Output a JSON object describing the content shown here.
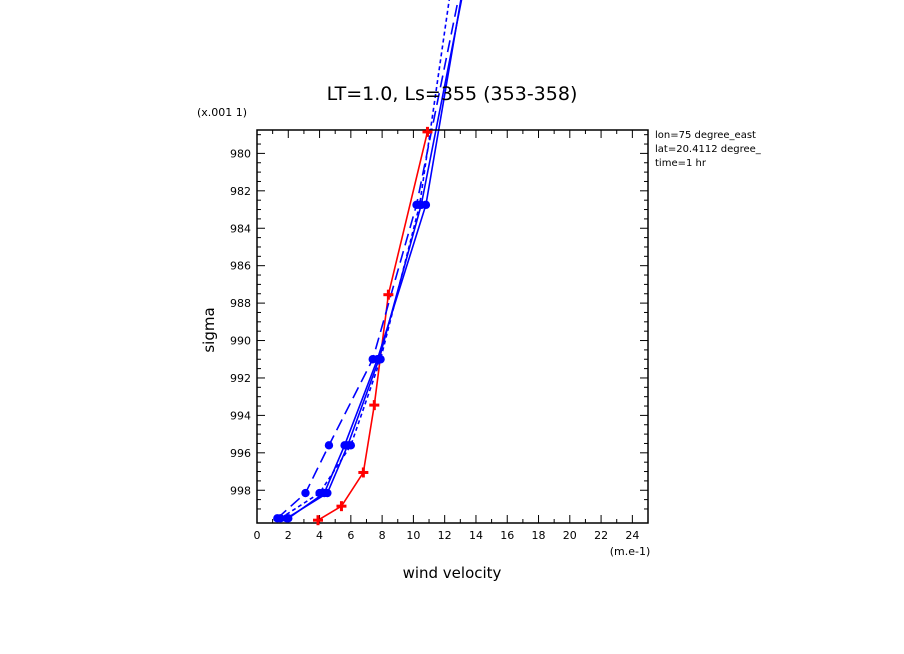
{
  "chart_data": {
    "type": "line",
    "title": "LT=1.0, Ls=355 (353-358)",
    "xlabel": "wind velocity",
    "ylabel": "sigma",
    "x_unit_label": "(m.e-1)",
    "y_scale_label": "(x.001 1)",
    "xlim": [
      0,
      25
    ],
    "ylim": [
      999.75,
      978.75
    ],
    "y_inverted": true,
    "x_ticks": [
      0,
      2,
      4,
      6,
      8,
      10,
      12,
      14,
      16,
      18,
      20,
      22,
      24
    ],
    "y_ticks": [
      980,
      982,
      984,
      986,
      988,
      990,
      992,
      994,
      996,
      998
    ],
    "grid": false,
    "info_lines": [
      "lon=75 degree_east",
      "lat=20.4112 degree_",
      "time=1 hr"
    ],
    "colors": {
      "red": "#ff0000",
      "blue": "#0000ff"
    },
    "series": [
      {
        "color": "#ff0000",
        "dash": "solid",
        "marker": "plus",
        "points": [
          [
            3.9,
            999.6
          ],
          [
            5.4,
            998.85
          ],
          [
            6.8,
            997.05
          ],
          [
            7.5,
            993.45
          ],
          [
            8.4,
            987.55
          ],
          [
            10.9,
            978.85
          ]
        ]
      },
      {
        "color": "#0000ff",
        "dash": "solid",
        "marker": "circle",
        "points": [
          [
            1.9,
            999.5
          ],
          [
            4.5,
            998.15
          ],
          [
            5.8,
            995.6
          ],
          [
            7.8,
            991.0
          ],
          [
            10.5,
            982.75
          ],
          [
            13.5,
            970.0
          ]
        ]
      },
      {
        "color": "#0000ff",
        "dash": "solid",
        "marker": "circle",
        "points": [
          [
            2.0,
            999.5
          ],
          [
            4.3,
            998.15
          ],
          [
            5.6,
            995.6
          ],
          [
            7.7,
            991.0
          ],
          [
            10.8,
            982.75
          ],
          [
            13.4,
            970.0
          ]
        ]
      },
      {
        "color": "#0000ff",
        "dash": "longdash",
        "marker": "circle",
        "points": [
          [
            1.3,
            999.5
          ],
          [
            3.1,
            998.15
          ],
          [
            4.6,
            995.6
          ],
          [
            7.4,
            991.0
          ],
          [
            10.2,
            982.75
          ],
          [
            13.3,
            970.0
          ]
        ]
      },
      {
        "color": "#0000ff",
        "dash": "shortdash",
        "marker": "circle",
        "points": [
          [
            1.5,
            999.5
          ],
          [
            4.0,
            998.15
          ],
          [
            6.0,
            995.6
          ],
          [
            7.9,
            991.0
          ],
          [
            10.4,
            982.75
          ],
          [
            12.6,
            970.0
          ]
        ]
      }
    ]
  }
}
